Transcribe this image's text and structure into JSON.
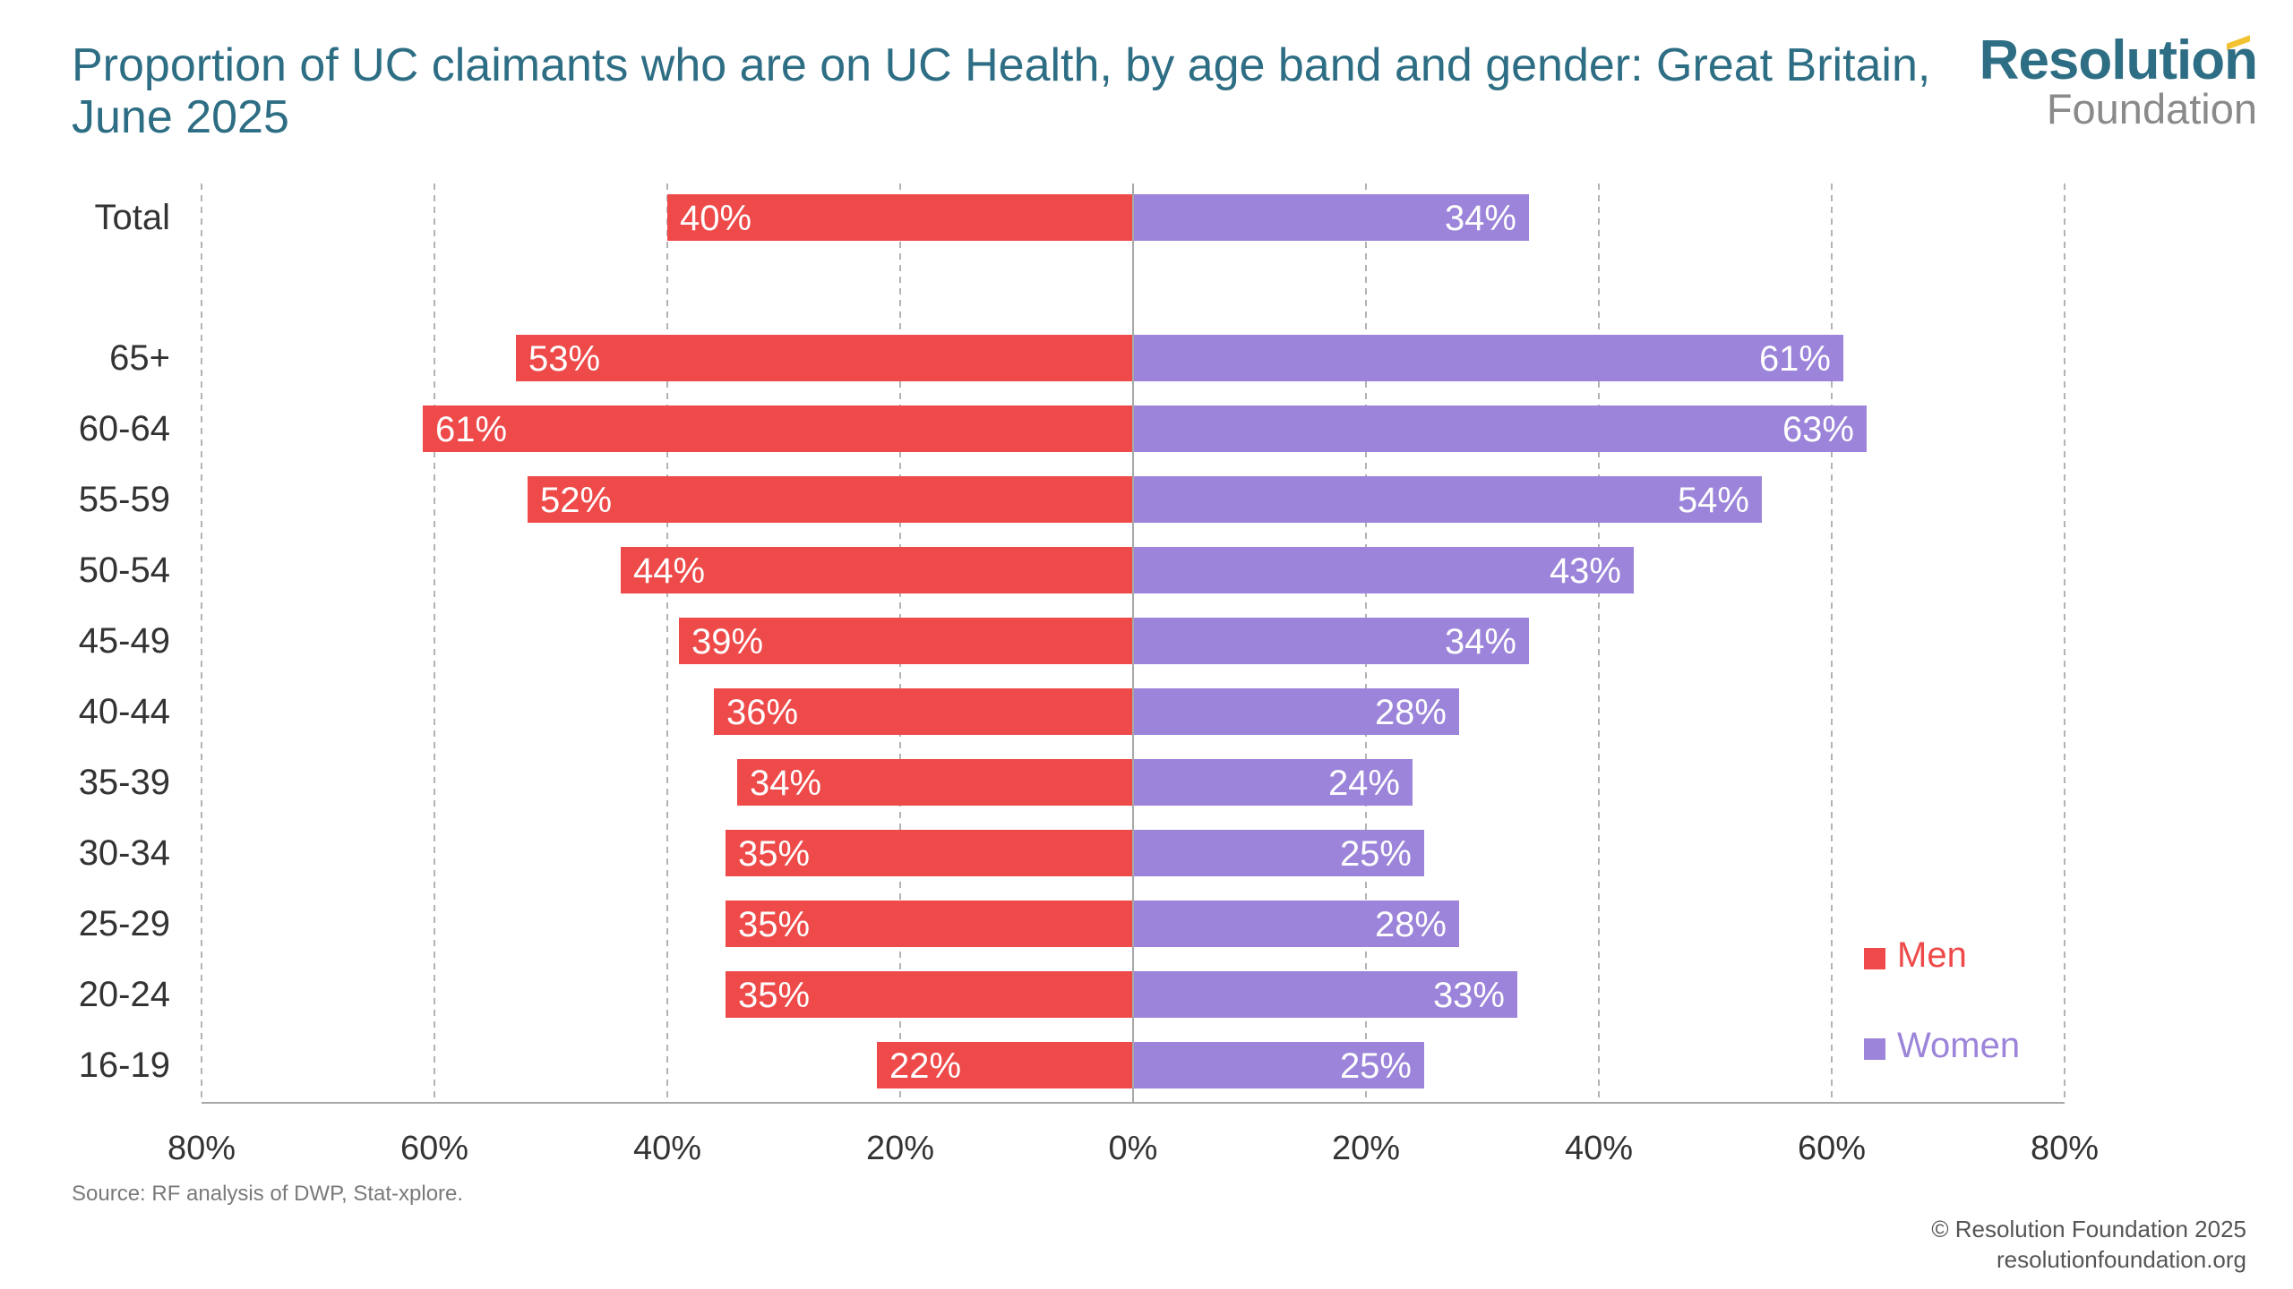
{
  "title": "Proportion of UC claimants who are on UC Health, by age band and gender: Great Britain, June 2025",
  "logo": {
    "line1": "Resolution",
    "line2": "Foundation"
  },
  "source": "Source: RF analysis of DWP, Stat-xplore.",
  "footer": {
    "copyright": "© Resolution Foundation 2025",
    "website": "resolutionfoundation.org"
  },
  "colors": {
    "men": "#ee4a4a",
    "women": "#9b84d9",
    "title": "#2e6e84"
  },
  "chart_data": {
    "type": "bar",
    "orientation": "horizontal-diverging",
    "categories": [
      "Total",
      "65+",
      "60-64",
      "55-59",
      "50-54",
      "45-49",
      "40-44",
      "35-39",
      "30-34",
      "25-29",
      "20-24",
      "16-19"
    ],
    "series": [
      {
        "name": "Men",
        "color": "#ee4a4a",
        "values": [
          40,
          53,
          61,
          52,
          44,
          39,
          36,
          34,
          35,
          35,
          35,
          22
        ],
        "labels": [
          "40%",
          "53%",
          "61%",
          "52%",
          "44%",
          "39%",
          "36%",
          "34%",
          "35%",
          "35%",
          "35%",
          "22%"
        ]
      },
      {
        "name": "Women",
        "color": "#9b84d9",
        "values": [
          34,
          61,
          63,
          54,
          43,
          34,
          28,
          24,
          25,
          28,
          33,
          25
        ],
        "labels": [
          "34%",
          "61%",
          "63%",
          "54%",
          "43%",
          "34%",
          "28%",
          "24%",
          "25%",
          "28%",
          "33%",
          "25%"
        ]
      }
    ],
    "xlim": [
      -80,
      80
    ],
    "xticks": [
      -80,
      -60,
      -40,
      -20,
      0,
      20,
      40,
      60,
      80
    ],
    "xtick_labels": [
      "80%",
      "60%",
      "40%",
      "20%",
      "0%",
      "20%",
      "40%",
      "60%",
      "80%"
    ],
    "grid": true,
    "legend": {
      "position": "bottom-right",
      "entries": [
        "Men",
        "Women"
      ]
    }
  }
}
